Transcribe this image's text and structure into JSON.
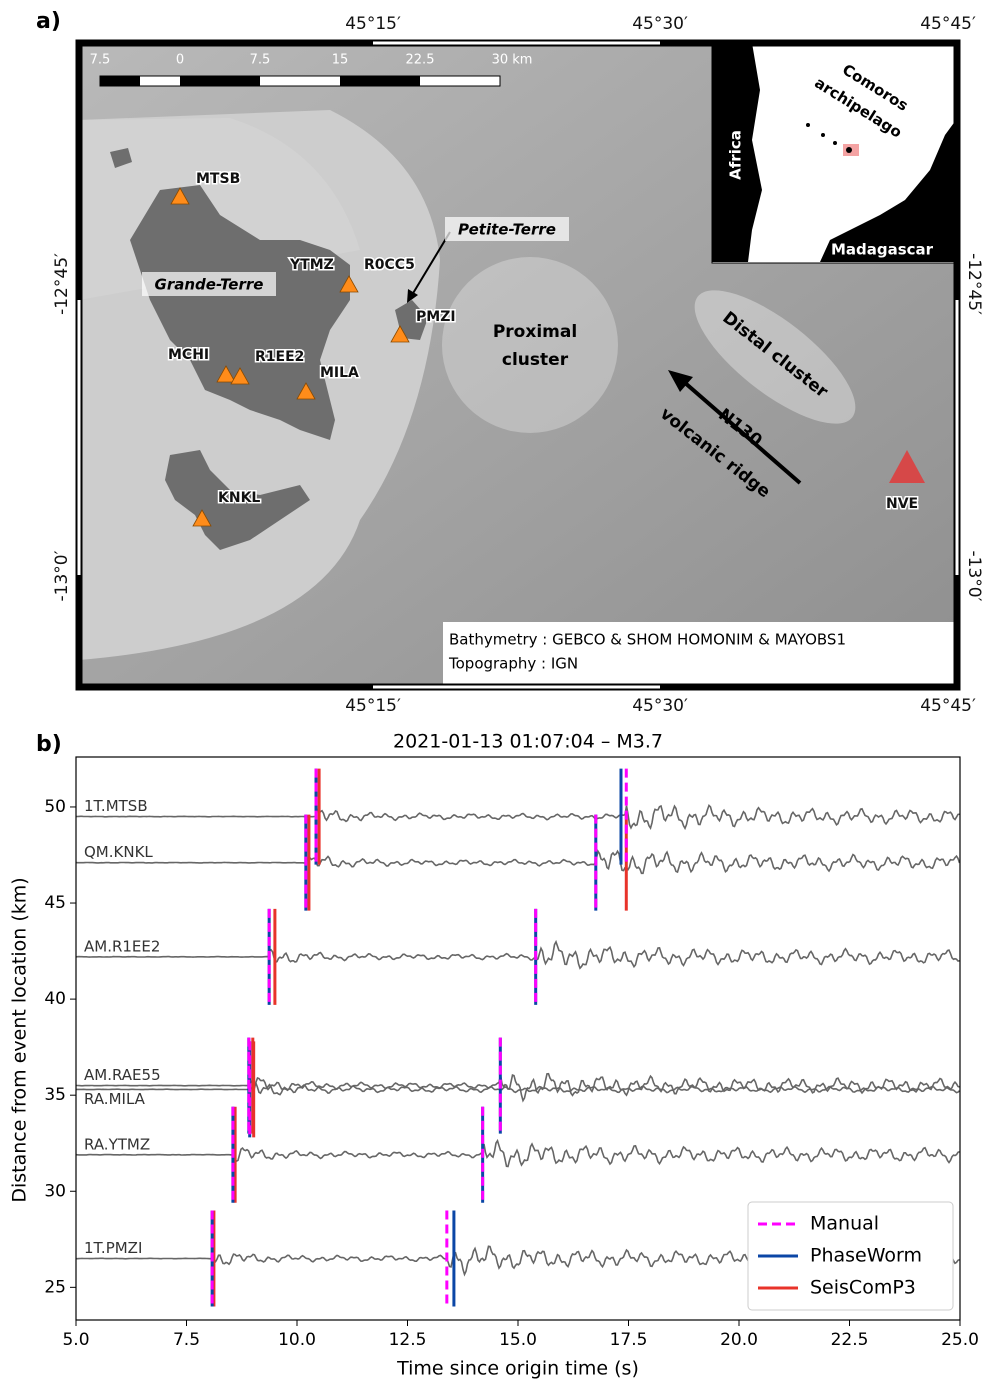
{
  "map": {
    "panel_label": "a)",
    "lon_ticks": [
      "45°15′",
      "45°30′",
      "45°45′"
    ],
    "lat_ticks": [
      "-12°45′",
      "-13°0′"
    ],
    "scale_labels": [
      "7.5",
      "0",
      "7.5",
      "15",
      "22.5",
      "30 km"
    ],
    "stations": [
      "MTSB",
      "YTMZ",
      "R0CC5",
      "PMZI",
      "MCHI",
      "R1EE2",
      "MILA",
      "KNKL",
      "NVE"
    ],
    "places": {
      "grande_terre": "Grande-Terre",
      "petite_terre": "Petite-Terre",
      "proximal_cluster": [
        "Proximal",
        "cluster"
      ],
      "distal_cluster": "Distal cluster",
      "ridge": [
        "N130",
        "volcanic ridge"
      ]
    },
    "inset": {
      "africa": "Africa",
      "madagascar": "Madagascar",
      "comoros": [
        "Comoros",
        "archipelago"
      ]
    },
    "credits": [
      "Bathymetry : GEBCO & SHOM HOMONIM & MAYOBS1",
      "Topography : IGN"
    ]
  },
  "chart_data": {
    "type": "seismogram",
    "panel_label": "b)",
    "title": "2021-01-13 01:07:04 – M3.7",
    "x_label": "Time since origin time (s)",
    "y_label": "Distance from event location (km)",
    "xlim": [
      5,
      25
    ],
    "xticks": [
      {
        "value": 5,
        "label": "5.0"
      },
      {
        "value": 7.5,
        "label": "7.5"
      },
      {
        "value": 10,
        "label": "10.0"
      },
      {
        "value": 12.5,
        "label": "12.5"
      },
      {
        "value": 15,
        "label": "15.0"
      },
      {
        "value": 17.5,
        "label": "17.5"
      },
      {
        "value": 20,
        "label": "20.0"
      },
      {
        "value": 22.5,
        "label": "22.5"
      },
      {
        "value": 25,
        "label": "25.0"
      }
    ],
    "ylim": [
      23.3,
      52.6
    ],
    "yticks": [
      25,
      30,
      35,
      40,
      45,
      50
    ],
    "traces": [
      {
        "name": "1T.MTSB",
        "distance": 49.5
      },
      {
        "name": "QM.KNKL",
        "distance": 47.1
      },
      {
        "name": "AM.R1EE2",
        "distance": 42.2
      },
      {
        "name": "AM.RAE55",
        "distance": 35.5
      },
      {
        "name": "RA.MILA",
        "distance": 35.3
      },
      {
        "name": "RA.YTMZ",
        "distance": 31.9
      },
      {
        "name": "1T.PMZI",
        "distance": 26.5
      }
    ],
    "series": [
      {
        "name": "Manual",
        "color": "#ff00ff",
        "dashed": true,
        "p_times": [
          10.43,
          10.2,
          9.37,
          8.91,
          8.93,
          8.55,
          8.08
        ],
        "s_times": [
          17.45,
          16.76,
          15.4,
          14.6,
          null,
          14.2,
          13.39
        ]
      },
      {
        "name": "PhaseWorm",
        "color": "#0b46a6",
        "dashed": false,
        "p_times": [
          10.43,
          10.2,
          9.37,
          8.91,
          8.93,
          8.55,
          8.08
        ],
        "s_times": [
          17.33,
          16.76,
          15.4,
          14.6,
          null,
          14.2,
          13.55
        ]
      },
      {
        "name": "SeisComP3",
        "color": "#e8332a",
        "dashed": false,
        "p_times": [
          10.5,
          10.27,
          9.5,
          9.0,
          9.02,
          8.6,
          8.12
        ],
        "s_times": [
          null,
          17.45,
          null,
          null,
          null,
          null,
          null
        ]
      }
    ],
    "trace_color": "#666666",
    "legend": "lower right"
  }
}
